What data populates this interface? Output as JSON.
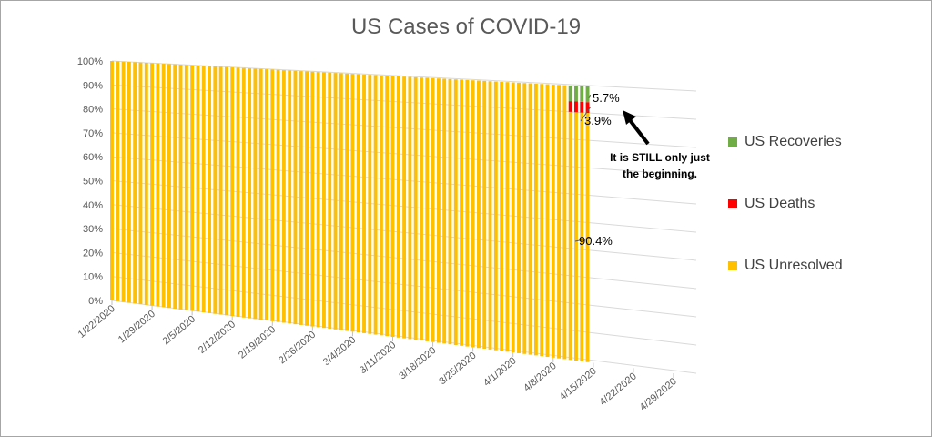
{
  "chart_data": {
    "type": "bar",
    "stacked": "percent",
    "title": "US Cases of COVID-19",
    "xlabel": "",
    "ylabel": "",
    "ylim": [
      0,
      100
    ],
    "y_ticks": [
      "0%",
      "10%",
      "20%",
      "30%",
      "40%",
      "50%",
      "60%",
      "70%",
      "80%",
      "90%",
      "100%"
    ],
    "x_range": [
      "1/22/2020",
      "4/29/2020"
    ],
    "x_ticks": [
      "1/22/2020",
      "1/29/2020",
      "2/5/2020",
      "2/12/2020",
      "2/19/2020",
      "2/26/2020",
      "3/4/2020",
      "3/11/2020",
      "3/18/2020",
      "3/25/2020",
      "4/1/2020",
      "4/8/2020",
      "4/15/2020",
      "4/22/2020",
      "4/29/2020"
    ],
    "last_data_date": "4/13/2020",
    "series": [
      {
        "name": "US Recoveries",
        "color": "#70ad47",
        "values": [
          0,
          0,
          0,
          0,
          0,
          0,
          0,
          0,
          0,
          0,
          0,
          0,
          0,
          0,
          0,
          0,
          0,
          0,
          0,
          0,
          0,
          0,
          0,
          0,
          0,
          0,
          0,
          0,
          0,
          0,
          0,
          0,
          0,
          0,
          0,
          0,
          0,
          0,
          0,
          0,
          0,
          0,
          0,
          0,
          0,
          0,
          0,
          0,
          0,
          0,
          0,
          0,
          0,
          0,
          0,
          0,
          0,
          0,
          0,
          0,
          0,
          0,
          0,
          0,
          0,
          0,
          0,
          0,
          0,
          0,
          0,
          0,
          0,
          0,
          0,
          0,
          0,
          0,
          0,
          0,
          5.7,
          5.7,
          5.7,
          5.7
        ]
      },
      {
        "name": "US Deaths",
        "color": "#ff0000",
        "values": [
          0,
          0,
          0,
          0,
          0,
          0,
          0,
          0,
          0,
          0,
          0,
          0,
          0,
          0,
          0,
          0,
          0,
          0,
          0,
          0,
          0,
          0,
          0,
          0,
          0,
          0,
          0,
          0,
          0,
          0,
          0,
          0,
          0,
          0,
          0,
          0,
          0,
          0,
          0,
          0,
          0,
          0,
          0,
          0,
          0,
          0,
          0,
          0,
          0,
          0,
          0,
          0,
          0,
          0,
          0,
          0,
          0,
          0,
          0,
          0,
          0,
          0,
          0,
          0,
          0,
          0,
          0,
          0,
          0,
          0,
          0,
          0,
          0,
          0,
          0,
          0,
          0,
          0,
          0,
          0,
          3.9,
          3.9,
          3.9,
          3.9
        ]
      },
      {
        "name": "US Unresolved",
        "color": "#ffc000",
        "values": [
          100,
          100,
          100,
          100,
          100,
          100,
          100,
          100,
          100,
          100,
          100,
          100,
          100,
          100,
          100,
          100,
          100,
          100,
          100,
          100,
          100,
          100,
          100,
          100,
          100,
          100,
          100,
          100,
          100,
          100,
          100,
          100,
          100,
          100,
          100,
          100,
          100,
          100,
          100,
          100,
          100,
          100,
          100,
          100,
          100,
          100,
          100,
          100,
          100,
          100,
          100,
          100,
          100,
          100,
          100,
          100,
          100,
          100,
          100,
          100,
          100,
          100,
          100,
          100,
          100,
          100,
          100,
          100,
          100,
          100,
          100,
          100,
          100,
          100,
          100,
          100,
          100,
          100,
          100,
          100,
          90.4,
          90.4,
          90.4,
          90.4
        ]
      }
    ],
    "data_labels": {
      "recoveries": "5.7%",
      "deaths": "3.9%",
      "unresolved": "90.4%"
    },
    "annotation": [
      "It is STILL only just",
      "the beginning."
    ],
    "legend_position": "right",
    "grid": true
  }
}
